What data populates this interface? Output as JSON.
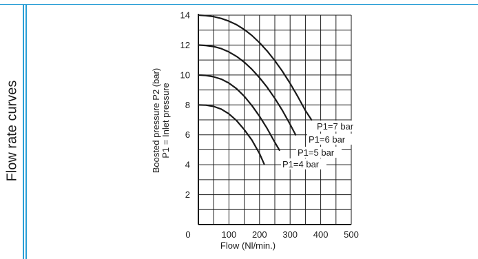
{
  "side_title": "Flow rate curves",
  "colors": {
    "rule": "#2a9fd6",
    "ink": "#1a1a1a",
    "grid": "#1a1a1a"
  },
  "chart_data": {
    "type": "line",
    "title": "",
    "xlabel": "Flow (Nl/min.)",
    "ylabel": "Boosted pressure P2 (bar)",
    "ylabel2": "P1 =  Inlet pressure",
    "xlim": [
      0,
      500
    ],
    "ylim": [
      0,
      14
    ],
    "x_ticks": [
      "0",
      "100",
      "200",
      "300",
      "400",
      "500"
    ],
    "y_ticks": [
      "2",
      "4",
      "6",
      "8",
      "10",
      "12",
      "14"
    ],
    "grid": true,
    "series": [
      {
        "name": "P1=4 bar",
        "x": [
          0,
          25,
          50,
          75,
          100,
          125,
          150,
          175,
          200,
          215
        ],
        "y": [
          8,
          7.98,
          7.9,
          7.72,
          7.4,
          6.95,
          6.35,
          5.65,
          4.75,
          4.05
        ]
      },
      {
        "name": "P1=5 bar",
        "x": [
          0,
          25,
          50,
          75,
          100,
          125,
          150,
          175,
          200,
          225,
          250,
          265
        ],
        "y": [
          10,
          9.97,
          9.88,
          9.72,
          9.46,
          9.08,
          8.58,
          7.96,
          7.24,
          6.42,
          5.5,
          4.98
        ]
      },
      {
        "name": "P1=6 bar",
        "x": [
          0,
          25,
          50,
          75,
          100,
          125,
          150,
          175,
          200,
          225,
          250,
          275,
          300,
          318
        ],
        "y": [
          12,
          11.97,
          11.9,
          11.76,
          11.54,
          11.24,
          10.86,
          10.38,
          9.82,
          9.18,
          8.44,
          7.62,
          6.7,
          6.0
        ]
      },
      {
        "name": "P1=7 bar",
        "x": [
          0,
          25,
          50,
          75,
          100,
          125,
          150,
          175,
          200,
          225,
          250,
          275,
          300,
          325,
          350,
          370
        ],
        "y": [
          14,
          13.97,
          13.9,
          13.78,
          13.6,
          13.36,
          13.04,
          12.64,
          12.16,
          11.6,
          10.96,
          10.24,
          9.44,
          8.56,
          7.62,
          7.0
        ]
      }
    ]
  }
}
